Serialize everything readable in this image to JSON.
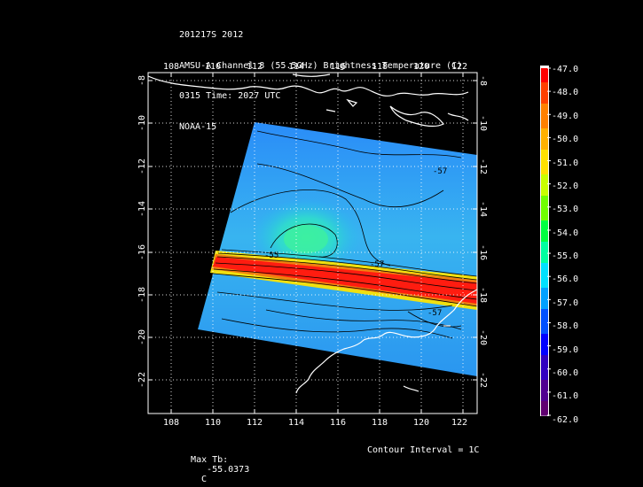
{
  "header": {
    "line1": "201217S 2012",
    "line2": "AMSU-A Channel 8 (55.5GHz) Brightness Temperature (C)",
    "line3": "0315 Time: 2027 UTC",
    "line4": "NOAA-15"
  },
  "map": {
    "lon_ticks": [
      "108",
      "110",
      "112",
      "114",
      "116",
      "118",
      "120",
      "122"
    ],
    "lat_ticks": [
      "-8",
      "-10",
      "-12",
      "-14",
      "-16",
      "-18",
      "-20",
      "-22"
    ],
    "contour_labels": [
      "-57",
      "-57",
      "-57",
      "-55"
    ],
    "colors": {
      "background": "#000000",
      "frame": "#ffffff",
      "coastline": "#ffffff",
      "contour": "#000000"
    }
  },
  "colorbar": {
    "labels": [
      "-47.0",
      "-48.0",
      "-49.0",
      "-50.0",
      "-51.0",
      "-52.0",
      "-53.0",
      "-54.0",
      "-55.0",
      "-56.0",
      "-57.0",
      "-58.0",
      "-59.0",
      "-60.0",
      "-61.0",
      "-62.0"
    ],
    "colors": [
      "#ff0000",
      "#ff4000",
      "#ff8000",
      "#ffb000",
      "#ffe000",
      "#c8ff00",
      "#70ff00",
      "#00ff40",
      "#00ffa0",
      "#00e0ff",
      "#00a0ff",
      "#0050ff",
      "#0000ff",
      "#3000c0",
      "#500090",
      "#600070"
    ]
  },
  "footer": {
    "max_label": "Max Tb:",
    "max_value": "-55.0373",
    "max_unit": "C",
    "contour_interval": "Contour Interval = 1C"
  }
}
